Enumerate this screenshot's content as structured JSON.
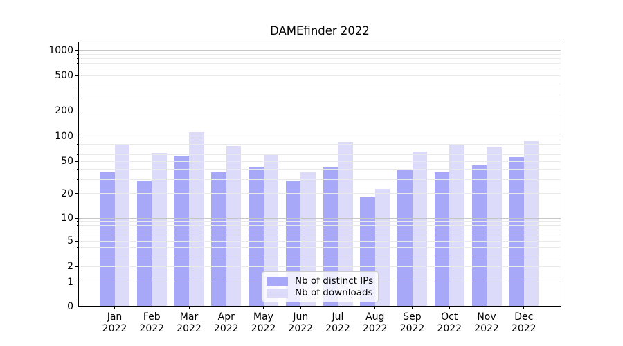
{
  "chart_data": {
    "type": "bar",
    "title": "DAMEfinder 2022",
    "categories": [
      "Jan 2022",
      "Feb 2022",
      "Mar 2022",
      "Apr 2022",
      "May 2022",
      "Jun 2022",
      "Jul 2022",
      "Aug 2022",
      "Sep 2022",
      "Oct 2022",
      "Nov 2022",
      "Dec 2022"
    ],
    "series": [
      {
        "name": "Nb of distinct IPs",
        "color": "#a8a8f8",
        "values": [
          37,
          29,
          59,
          37,
          43,
          29,
          43,
          18,
          39,
          37,
          45,
          56
        ]
      },
      {
        "name": "Nb of downloads",
        "color": "#dcdcfa",
        "values": [
          80,
          63,
          111,
          77,
          61,
          37,
          86,
          23,
          66,
          79,
          75,
          87
        ]
      }
    ],
    "y_ticks": [
      0,
      1,
      2,
      5,
      10,
      20,
      50,
      100,
      200,
      500,
      1000
    ],
    "y_scale": "symlog",
    "ylim": [
      0,
      1000
    ],
    "grid": "horizontal major and minor gridlines",
    "legend": {
      "position": "lower-center-inside",
      "entries": [
        "Nb of distinct IPs",
        "Nb of downloads"
      ]
    },
    "xlabel": "",
    "ylabel": ""
  },
  "colors": {
    "background": "#ffffff",
    "axis": "#000000",
    "text": "#000000",
    "major_grid": "#c6c6c6",
    "minor_grid": "#e9e9e9",
    "legend_border": "#cccccc"
  }
}
